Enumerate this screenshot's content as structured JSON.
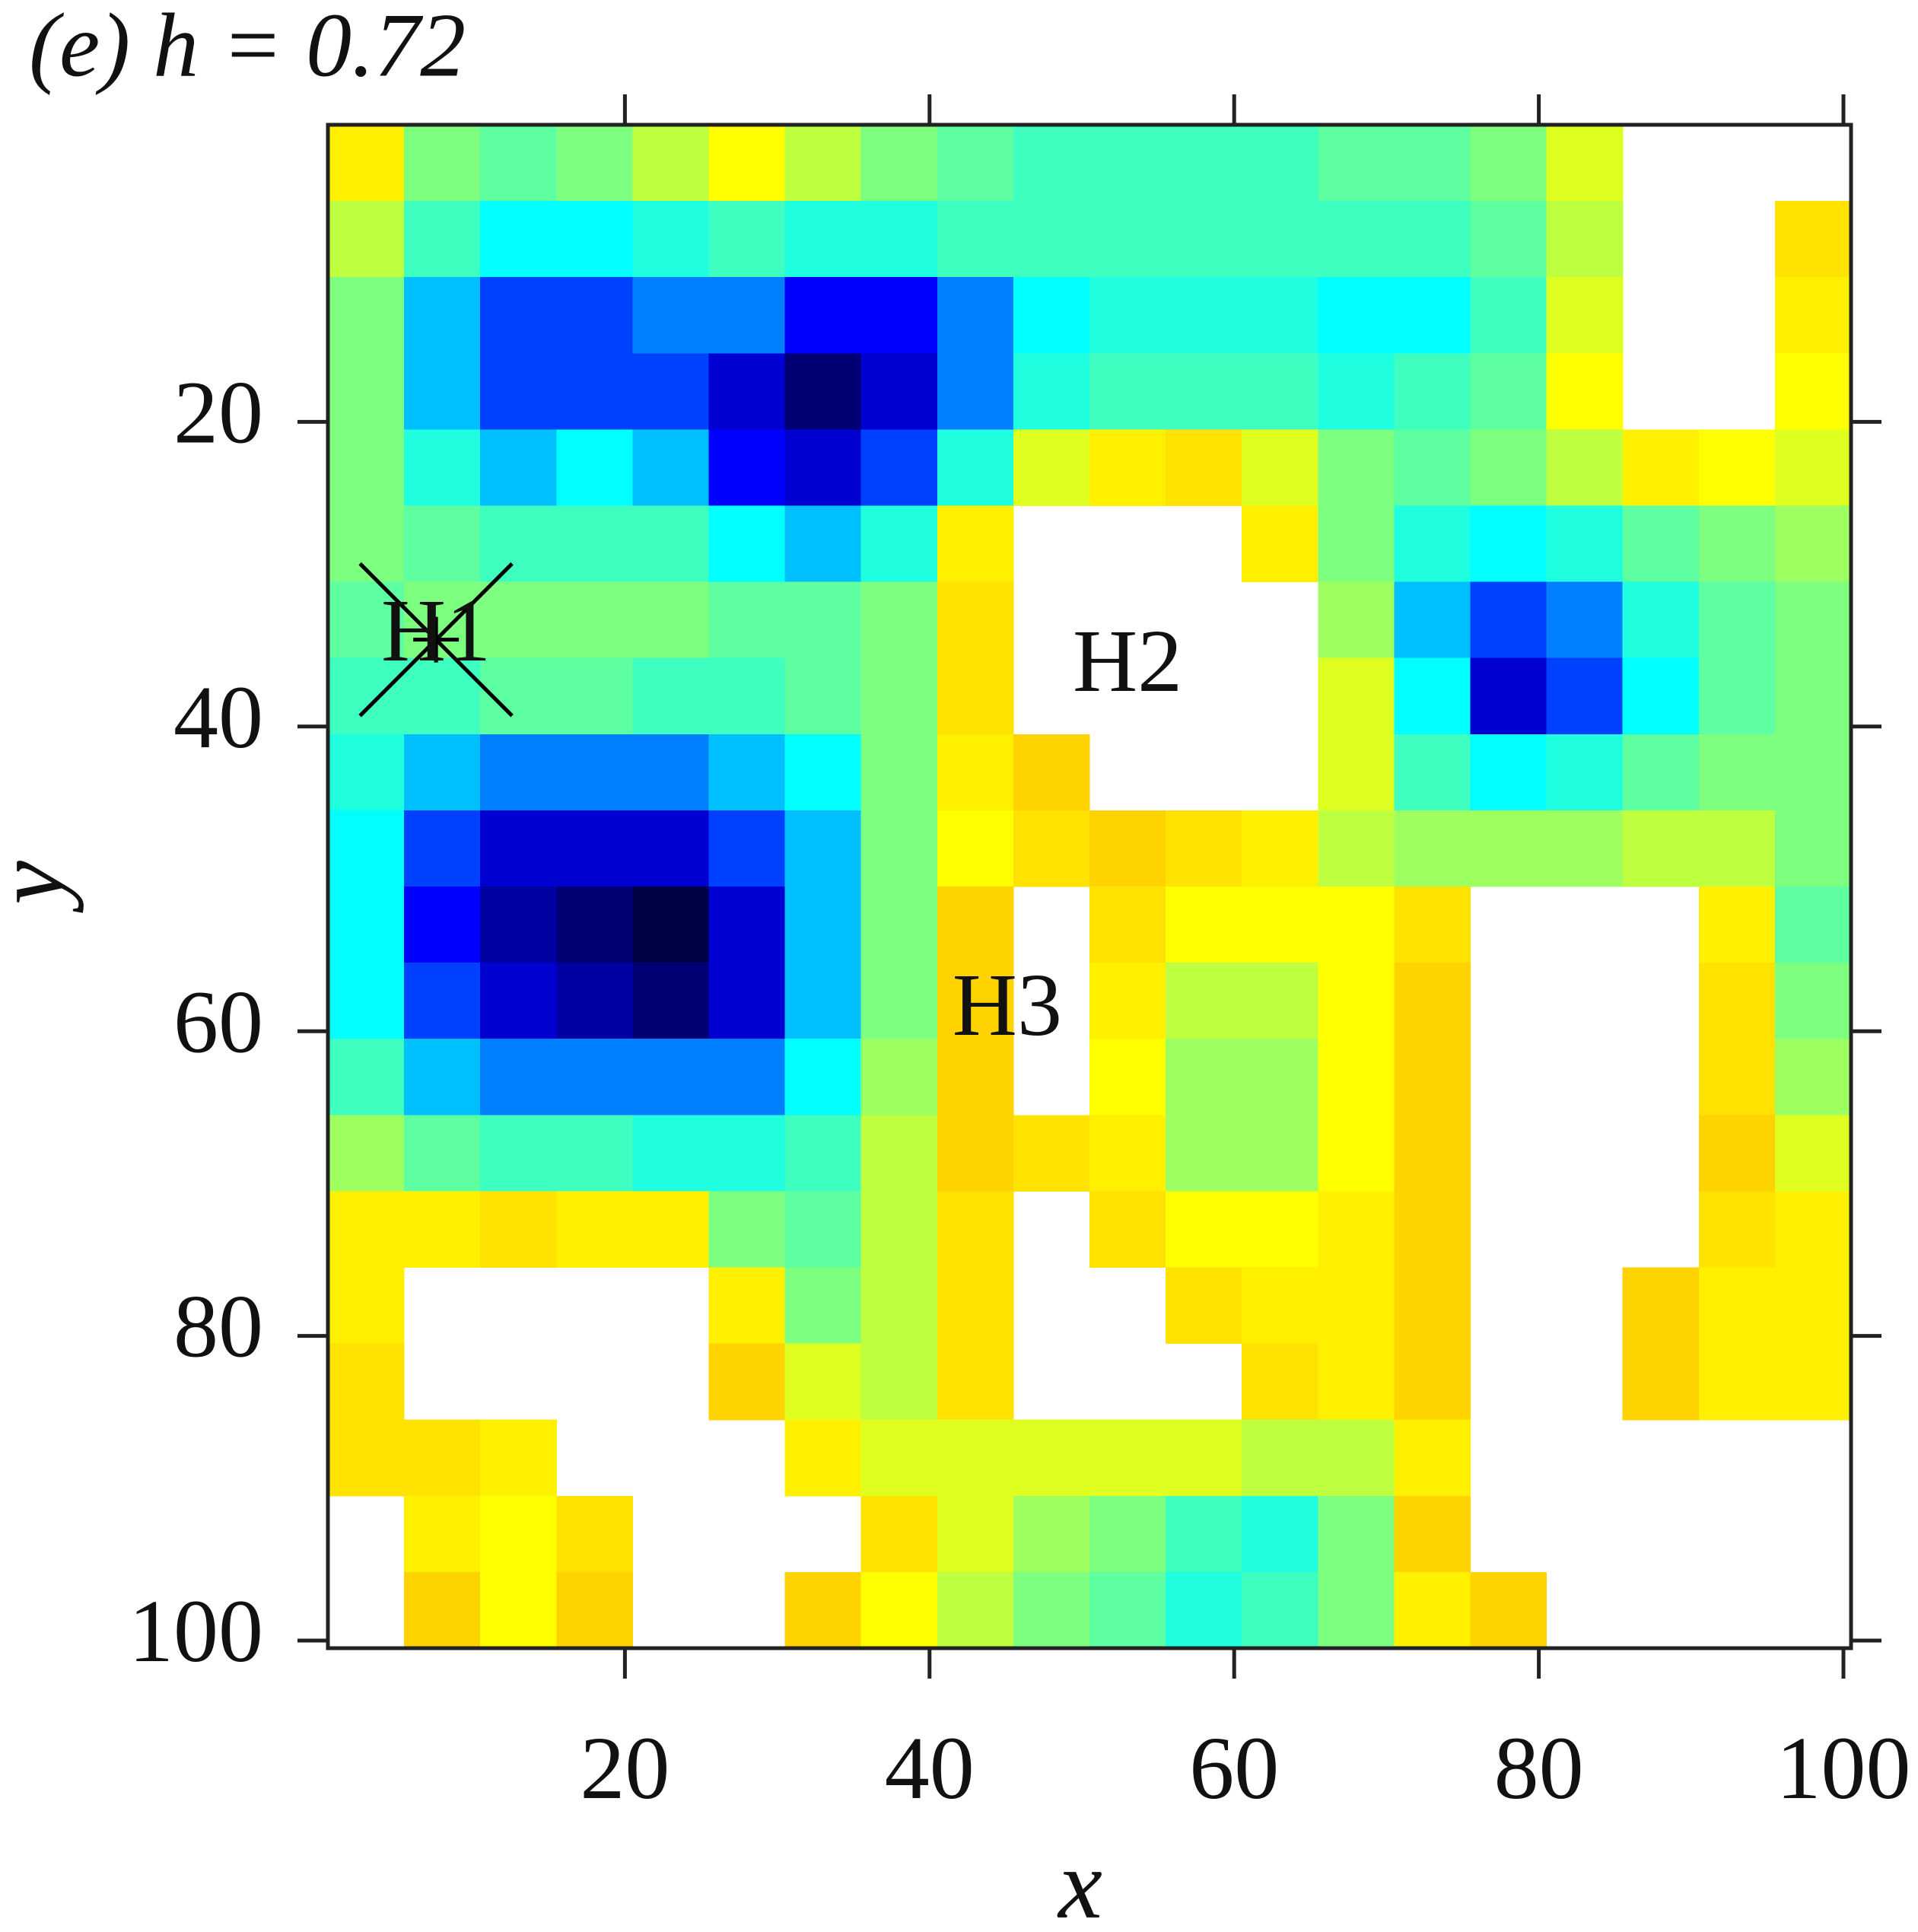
{
  "chart_data": {
    "type": "heatmap",
    "title": "(e) h = 0.72",
    "x_label": "x",
    "y_label": "y",
    "xlim": [
      0.5,
      100.5
    ],
    "ylim": [
      0.5,
      100.5
    ],
    "y_inverted": true,
    "xticks": [
      20,
      40,
      60,
      80,
      100
    ],
    "yticks": [
      20,
      40,
      60,
      80,
      100
    ],
    "zlim": [
      0,
      1
    ],
    "colormap": [
      "#000046",
      "#0000ff",
      "#00ffff",
      "#7dff80",
      "#ffff00",
      "#ffc400"
    ],
    "x": [
      3,
      8,
      13,
      18,
      23,
      28,
      33,
      38,
      43,
      48,
      53,
      58,
      63,
      68,
      73,
      78,
      83,
      88,
      93,
      98
    ],
    "y": [
      3,
      8,
      13,
      18,
      23,
      28,
      33,
      38,
      43,
      48,
      53,
      58,
      63,
      68,
      73,
      78,
      83,
      88,
      93,
      98
    ],
    "z": [
      [
        0.85,
        0.6,
        0.55,
        0.6,
        0.7,
        0.8,
        0.7,
        0.6,
        0.55,
        0.5,
        0.5,
        0.5,
        0.5,
        0.55,
        0.55,
        0.6,
        0.75,
        null,
        null,
        null
      ],
      [
        0.7,
        0.5,
        0.4,
        0.4,
        0.45,
        0.5,
        0.45,
        0.45,
        0.5,
        0.5,
        0.5,
        0.5,
        0.5,
        0.5,
        0.5,
        0.55,
        0.7,
        null,
        null,
        0.9
      ],
      [
        0.6,
        0.35,
        0.25,
        0.25,
        0.3,
        0.3,
        0.2,
        0.2,
        0.3,
        0.4,
        0.45,
        0.45,
        0.45,
        0.4,
        0.4,
        0.5,
        0.75,
        null,
        null,
        0.85
      ],
      [
        0.6,
        0.35,
        0.25,
        0.25,
        0.25,
        0.15,
        0.05,
        0.15,
        0.3,
        0.45,
        0.5,
        0.5,
        0.5,
        0.45,
        0.5,
        0.55,
        0.8,
        null,
        null,
        0.8
      ],
      [
        0.6,
        0.45,
        0.35,
        0.4,
        0.35,
        0.2,
        0.15,
        0.25,
        0.45,
        0.75,
        0.85,
        0.9,
        0.75,
        0.6,
        0.55,
        0.6,
        0.7,
        0.85,
        0.8,
        0.75
      ],
      [
        0.6,
        0.55,
        0.5,
        0.5,
        0.5,
        0.4,
        0.35,
        0.45,
        0.85,
        null,
        null,
        null,
        0.85,
        0.6,
        0.45,
        0.4,
        0.45,
        0.55,
        0.6,
        0.65
      ],
      [
        0.55,
        0.6,
        0.6,
        0.6,
        0.6,
        0.55,
        0.55,
        0.6,
        0.9,
        null,
        null,
        null,
        null,
        0.65,
        0.35,
        0.25,
        0.3,
        0.45,
        0.55,
        0.6
      ],
      [
        0.5,
        0.5,
        0.55,
        0.55,
        0.5,
        0.5,
        0.55,
        0.6,
        0.9,
        null,
        null,
        null,
        null,
        0.75,
        0.4,
        0.15,
        0.25,
        0.4,
        0.55,
        0.6
      ],
      [
        0.45,
        0.35,
        0.3,
        0.3,
        0.3,
        0.35,
        0.4,
        0.6,
        0.85,
        0.95,
        null,
        null,
        null,
        0.75,
        0.5,
        0.4,
        0.45,
        0.55,
        0.6,
        0.6
      ],
      [
        0.4,
        0.25,
        0.15,
        0.15,
        0.15,
        0.25,
        0.35,
        0.6,
        0.8,
        0.9,
        0.95,
        0.9,
        0.85,
        0.7,
        0.65,
        0.65,
        0.65,
        0.7,
        0.7,
        0.6
      ],
      [
        0.4,
        0.2,
        0.1,
        0.05,
        0.0,
        0.15,
        0.35,
        0.6,
        0.95,
        null,
        0.9,
        0.8,
        0.8,
        0.8,
        0.9,
        null,
        null,
        null,
        0.85,
        0.55
      ],
      [
        0.4,
        0.25,
        0.15,
        0.1,
        0.05,
        0.15,
        0.35,
        0.6,
        0.95,
        null,
        0.85,
        0.7,
        0.7,
        0.8,
        0.95,
        null,
        null,
        null,
        0.9,
        0.6
      ],
      [
        0.5,
        0.35,
        0.3,
        0.3,
        0.3,
        0.3,
        0.4,
        0.65,
        0.95,
        null,
        0.8,
        0.65,
        0.65,
        0.8,
        0.95,
        null,
        null,
        null,
        0.9,
        0.65
      ],
      [
        0.65,
        0.55,
        0.5,
        0.5,
        0.45,
        0.45,
        0.5,
        0.7,
        0.95,
        0.9,
        0.85,
        0.65,
        0.65,
        0.8,
        0.95,
        null,
        null,
        null,
        0.95,
        0.75
      ],
      [
        0.85,
        0.85,
        0.9,
        0.85,
        0.85,
        0.6,
        0.55,
        0.7,
        0.9,
        null,
        0.9,
        0.8,
        0.8,
        0.85,
        0.95,
        null,
        null,
        null,
        0.9,
        0.85
      ],
      [
        0.85,
        null,
        null,
        null,
        null,
        0.85,
        0.6,
        0.7,
        0.9,
        null,
        null,
        0.9,
        0.85,
        0.85,
        0.95,
        null,
        null,
        0.95,
        0.85,
        0.85
      ],
      [
        0.9,
        null,
        null,
        null,
        null,
        0.95,
        0.75,
        0.7,
        0.9,
        null,
        null,
        null,
        0.9,
        0.85,
        0.95,
        null,
        null,
        0.95,
        0.85,
        0.85
      ],
      [
        0.9,
        0.9,
        0.85,
        null,
        null,
        null,
        0.85,
        0.75,
        0.75,
        0.75,
        0.75,
        0.75,
        0.7,
        0.7,
        0.85,
        null,
        null,
        null,
        null,
        null
      ],
      [
        null,
        0.85,
        0.8,
        0.9,
        null,
        null,
        null,
        0.9,
        0.75,
        0.65,
        0.6,
        0.5,
        0.45,
        0.6,
        0.95,
        null,
        null,
        null,
        null,
        null
      ],
      [
        null,
        0.95,
        0.8,
        0.95,
        null,
        null,
        0.95,
        0.8,
        0.7,
        0.6,
        0.55,
        0.45,
        0.5,
        0.6,
        0.85,
        0.95,
        null,
        null,
        null,
        null
      ]
    ],
    "annotations": [
      {
        "text": "H1",
        "x": 7.6,
        "y": 34.3
      },
      {
        "text": "H2",
        "x": 53,
        "y": 36.3
      },
      {
        "text": "H3",
        "x": 45.1,
        "y": 58.9
      }
    ],
    "markers": [
      {
        "x": 7.6,
        "y": 34.3,
        "symbol": "x",
        "color": "#000000"
      }
    ]
  }
}
